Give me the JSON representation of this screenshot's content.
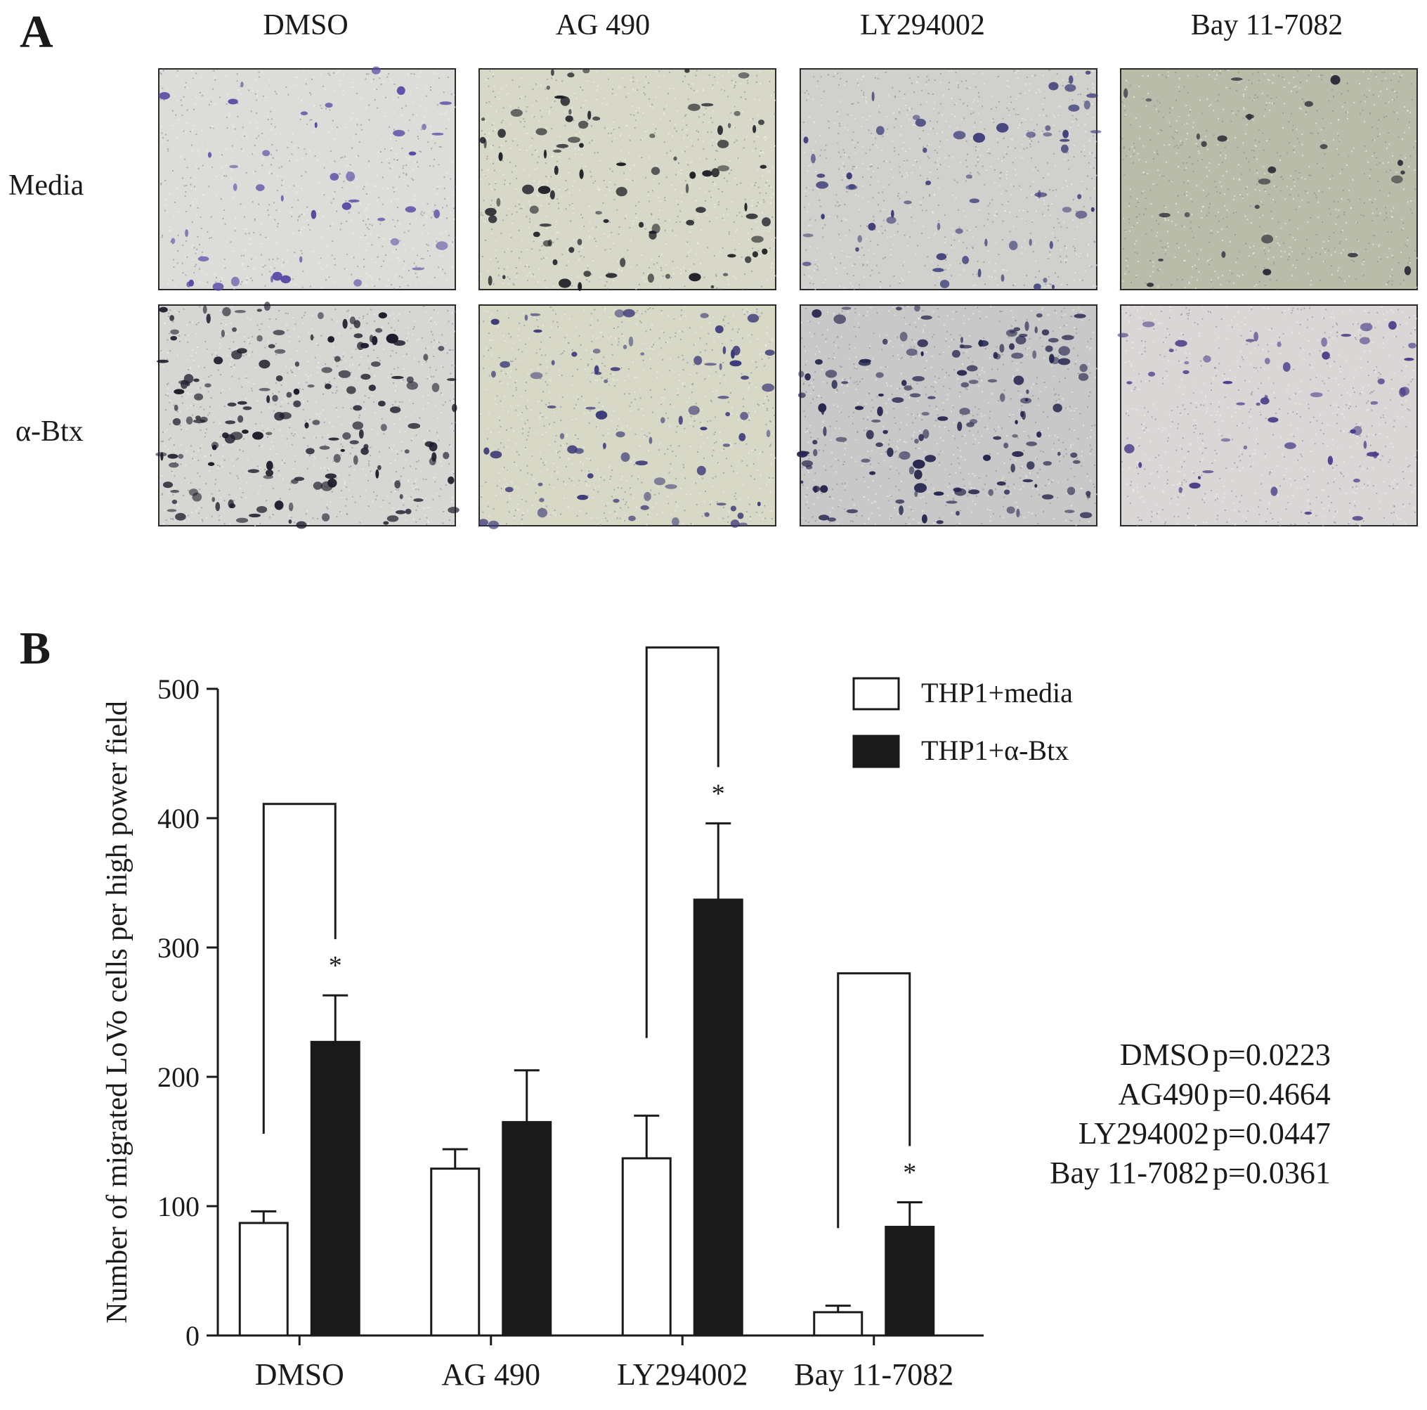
{
  "panel_a": {
    "letter": "A",
    "columns": [
      "DMSO",
      "AG 490",
      "LY294002",
      "Bay 11-7082"
    ],
    "rows": [
      "Media",
      "α-Btx"
    ],
    "images": [
      {
        "row": 0,
        "col": 0,
        "bg": "#dcdcd8",
        "density": 0.16,
        "cell_color": "#5a4aa6",
        "icon": "micrograph-image"
      },
      {
        "row": 0,
        "col": 1,
        "bg": "#d8d8c8",
        "density": 0.34,
        "cell_color": "#1e1e26",
        "icon": "micrograph-image"
      },
      {
        "row": 0,
        "col": 2,
        "bg": "#d0d0cc",
        "density": 0.24,
        "cell_color": "#3a3a78",
        "icon": "micrograph-image"
      },
      {
        "row": 0,
        "col": 3,
        "bg": "#b8bca8",
        "density": 0.1,
        "cell_color": "#2e2e3a",
        "icon": "micrograph-image"
      },
      {
        "row": 1,
        "col": 0,
        "bg": "#d6d6d2",
        "density": 0.62,
        "cell_color": "#1c1c2c",
        "icon": "micrograph-image"
      },
      {
        "row": 1,
        "col": 1,
        "bg": "#d8d8c6",
        "density": 0.3,
        "cell_color": "#3c3a78",
        "icon": "micrograph-image"
      },
      {
        "row": 1,
        "col": 2,
        "bg": "#c8c8c8",
        "density": 0.58,
        "cell_color": "#25254e",
        "icon": "micrograph-image"
      },
      {
        "row": 1,
        "col": 3,
        "bg": "#dad6d6",
        "density": 0.2,
        "cell_color": "#4a3e8a",
        "icon": "micrograph-image"
      }
    ]
  },
  "panel_b": {
    "letter": "B",
    "pvalues": [
      {
        "group": "DMSO",
        "p": "p=0.0223"
      },
      {
        "group": "AG490",
        "p": "p=0.4664"
      },
      {
        "group": "LY294002",
        "p": "p=0.0447"
      },
      {
        "group": "Bay 11-7082",
        "p": "p=0.0361"
      }
    ]
  },
  "chart_data": {
    "type": "bar",
    "categories": [
      "DMSO",
      "AG 490",
      "LY294002",
      "Bay 11-7082"
    ],
    "series": [
      {
        "name": "THP1+media",
        "values": [
          87,
          129,
          137,
          18
        ],
        "errors": [
          9,
          15,
          33,
          5
        ],
        "fill": "#ffffff"
      },
      {
        "name": "THP1+α-Btx",
        "values": [
          227,
          165,
          337,
          84
        ],
        "errors": [
          36,
          40,
          59,
          19
        ],
        "fill": "#1a1a1a"
      }
    ],
    "ylabel": "Number of migrated LoVo cells per high power field",
    "xlabel": "",
    "ylim": [
      0,
      500
    ],
    "yticks": [
      0,
      100,
      200,
      300,
      400,
      500
    ],
    "significance": [
      {
        "category": "DMSO",
        "marker": "*",
        "bracket_top": 411
      },
      {
        "category": "LY294002",
        "marker": "*",
        "bracket_top": 532
      },
      {
        "category": "Bay 11-7082",
        "marker": "*",
        "bracket_top": 280
      }
    ],
    "legend_position": "top-right",
    "grid": false
  }
}
